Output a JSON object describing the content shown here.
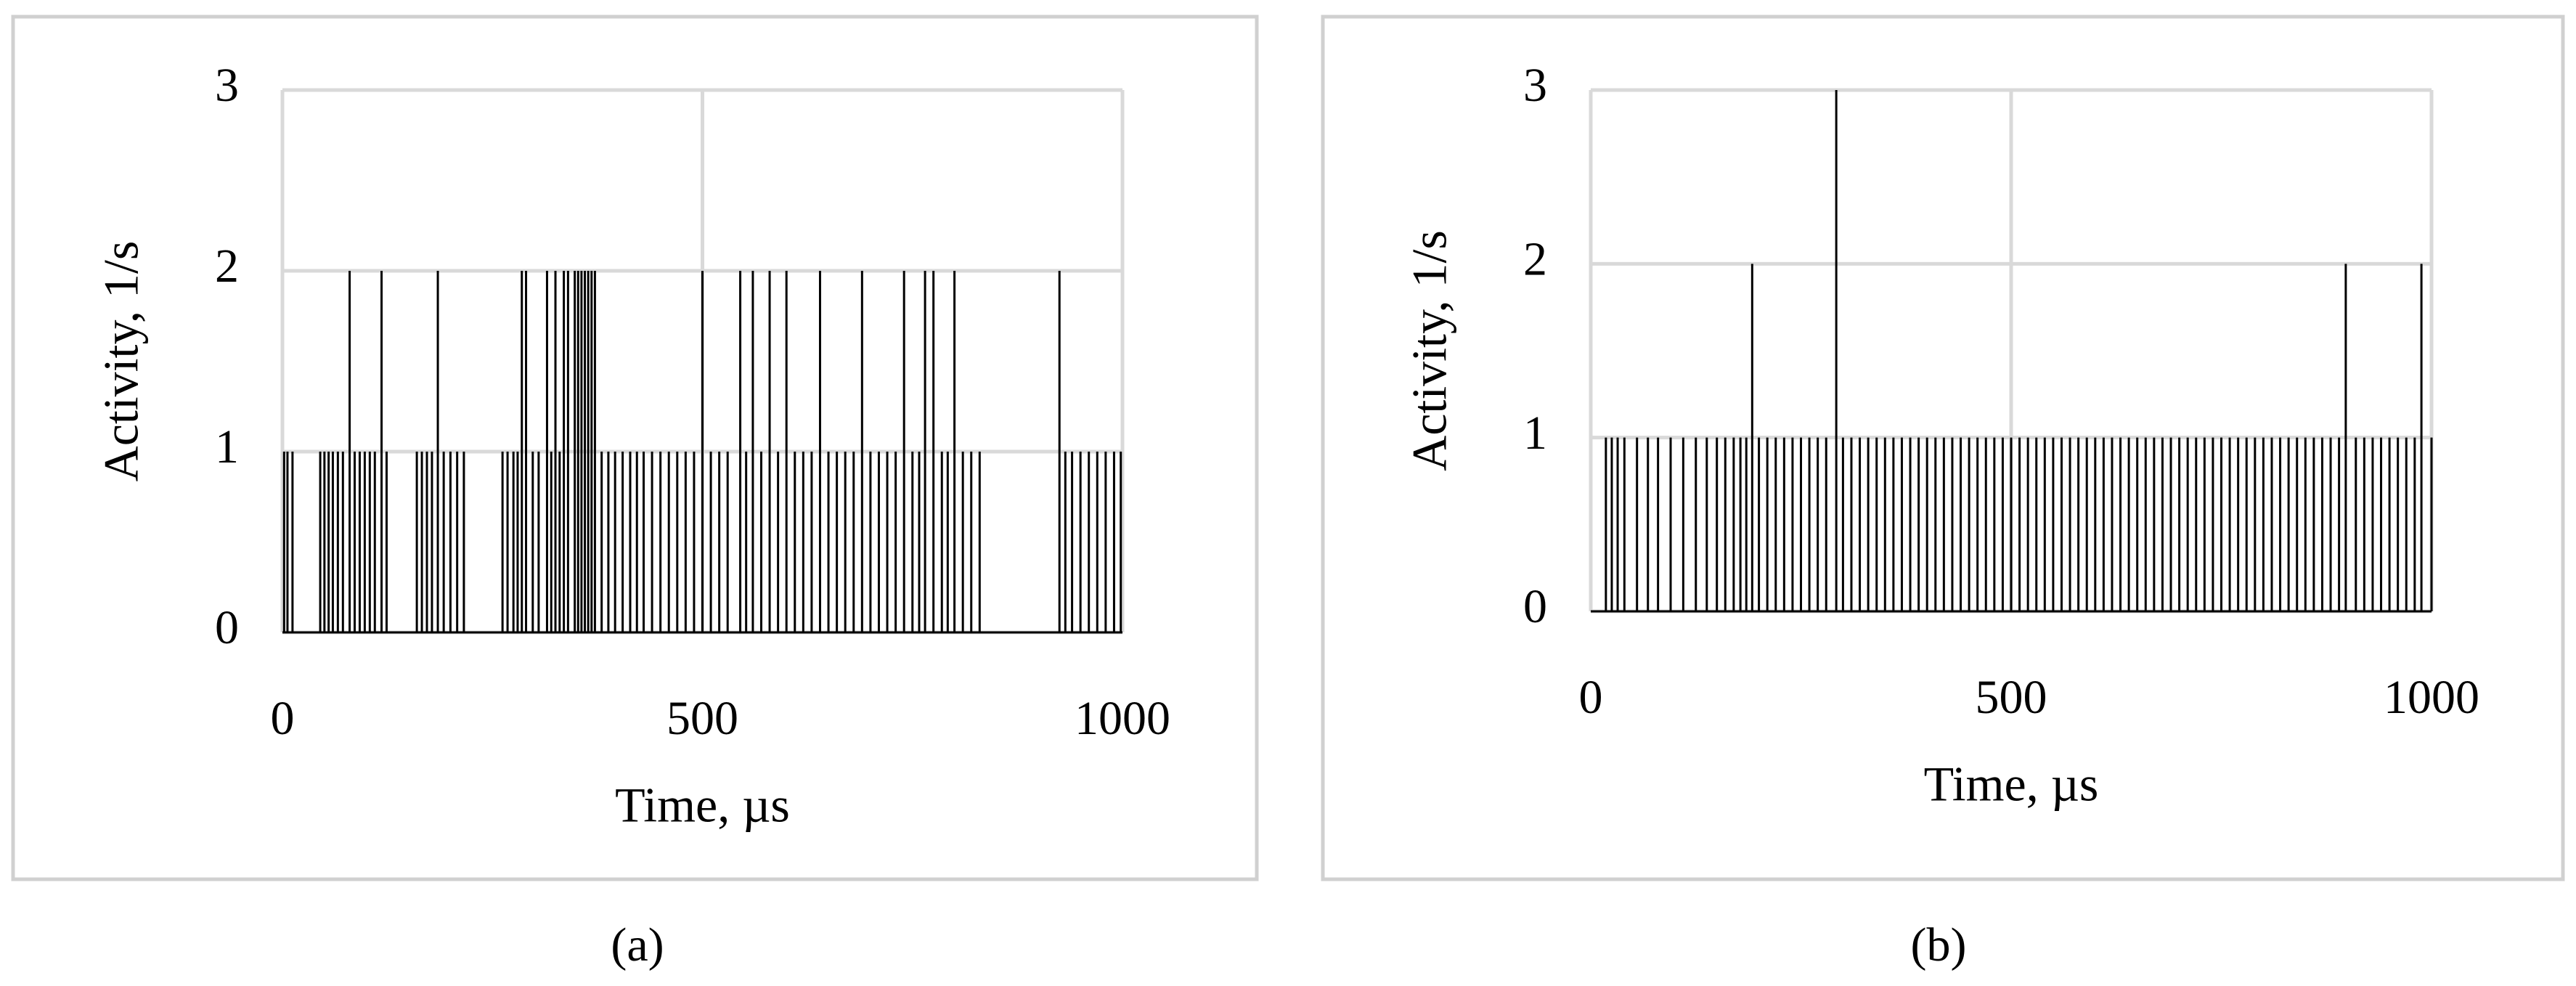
{
  "chart_data": [
    {
      "type": "stem",
      "caption": "(a)",
      "xlabel": "Time, µs",
      "ylabel": "Activity, 1/s",
      "color": "#000000",
      "grid": true,
      "xlim": [
        0,
        1000
      ],
      "ylim": [
        0,
        3
      ],
      "xticks": [
        0,
        500,
        1000
      ],
      "yticks": [
        0,
        1,
        2,
        3
      ],
      "x": [
        2,
        6,
        12,
        45,
        50,
        55,
        60,
        66,
        72,
        80,
        86,
        92,
        98,
        104,
        110,
        118,
        124,
        160,
        166,
        172,
        178,
        185,
        192,
        200,
        208,
        216,
        262,
        268,
        275,
        280,
        285,
        290,
        298,
        305,
        315,
        320,
        325,
        330,
        335,
        340,
        348,
        352,
        356,
        360,
        364,
        368,
        372,
        380,
        388,
        396,
        405,
        414,
        422,
        430,
        440,
        450,
        460,
        470,
        480,
        490,
        500,
        510,
        520,
        530,
        545,
        552,
        560,
        570,
        580,
        590,
        600,
        610,
        620,
        630,
        640,
        650,
        660,
        670,
        680,
        690,
        700,
        710,
        720,
        730,
        740,
        750,
        758,
        765,
        775,
        785,
        792,
        800,
        810,
        820,
        830,
        925,
        932,
        940,
        950,
        960,
        970,
        980,
        990,
        998
      ],
      "values": [
        1,
        1,
        1,
        1,
        1,
        1,
        1,
        1,
        1,
        2,
        1,
        1,
        1,
        1,
        1,
        2,
        1,
        1,
        1,
        1,
        1,
        2,
        1,
        1,
        1,
        1,
        1,
        1,
        1,
        1,
        2,
        2,
        1,
        1,
        2,
        1,
        2,
        1,
        2,
        2,
        2,
        2,
        2,
        2,
        2,
        2,
        2,
        1,
        1,
        1,
        1,
        1,
        1,
        1,
        1,
        1,
        1,
        1,
        1,
        1,
        2,
        1,
        1,
        1,
        2,
        1,
        2,
        1,
        2,
        1,
        2,
        1,
        1,
        1,
        2,
        1,
        1,
        1,
        1,
        2,
        1,
        1,
        1,
        1,
        2,
        1,
        1,
        2,
        2,
        1,
        1,
        2,
        1,
        1,
        1,
        2,
        1,
        1,
        1,
        1,
        1,
        1,
        1,
        1
      ]
    },
    {
      "type": "stem",
      "caption": "(b)",
      "xlabel": "Time, µs",
      "ylabel": "Activity, 1/s",
      "color": "#000000",
      "grid": true,
      "xlim": [
        0,
        1000
      ],
      "ylim": [
        0,
        3
      ],
      "xticks": [
        0,
        500,
        1000
      ],
      "yticks": [
        0,
        1,
        2,
        3
      ],
      "x": [
        18,
        25,
        32,
        40,
        55,
        68,
        80,
        95,
        110,
        125,
        138,
        150,
        160,
        170,
        178,
        185,
        192,
        200,
        210,
        220,
        230,
        240,
        250,
        260,
        270,
        280,
        292,
        300,
        310,
        320,
        330,
        340,
        350,
        360,
        370,
        380,
        390,
        400,
        410,
        420,
        430,
        440,
        450,
        460,
        470,
        480,
        490,
        500,
        510,
        520,
        530,
        540,
        550,
        560,
        570,
        580,
        590,
        600,
        610,
        620,
        630,
        640,
        650,
        660,
        670,
        680,
        690,
        700,
        710,
        720,
        730,
        740,
        750,
        760,
        770,
        780,
        790,
        800,
        810,
        820,
        830,
        840,
        850,
        860,
        870,
        880,
        890,
        898,
        910,
        920,
        930,
        940,
        950,
        960,
        970,
        980,
        988,
        1000
      ],
      "values": [
        1,
        1,
        1,
        1,
        1,
        1,
        1,
        1,
        1,
        1,
        1,
        1,
        1,
        1,
        1,
        1,
        2,
        1,
        1,
        1,
        1,
        1,
        1,
        1,
        1,
        1,
        3,
        1,
        1,
        1,
        1,
        1,
        1,
        1,
        1,
        1,
        1,
        1,
        1,
        1,
        1,
        1,
        1,
        1,
        1,
        1,
        1,
        1,
        1,
        1,
        1,
        1,
        1,
        1,
        1,
        1,
        1,
        1,
        1,
        1,
        1,
        1,
        1,
        1,
        1,
        1,
        1,
        1,
        1,
        1,
        1,
        1,
        1,
        1,
        1,
        1,
        1,
        1,
        1,
        1,
        1,
        1,
        1,
        1,
        1,
        1,
        1,
        2,
        1,
        1,
        1,
        1,
        1,
        1,
        1,
        1,
        2,
        1
      ]
    }
  ]
}
